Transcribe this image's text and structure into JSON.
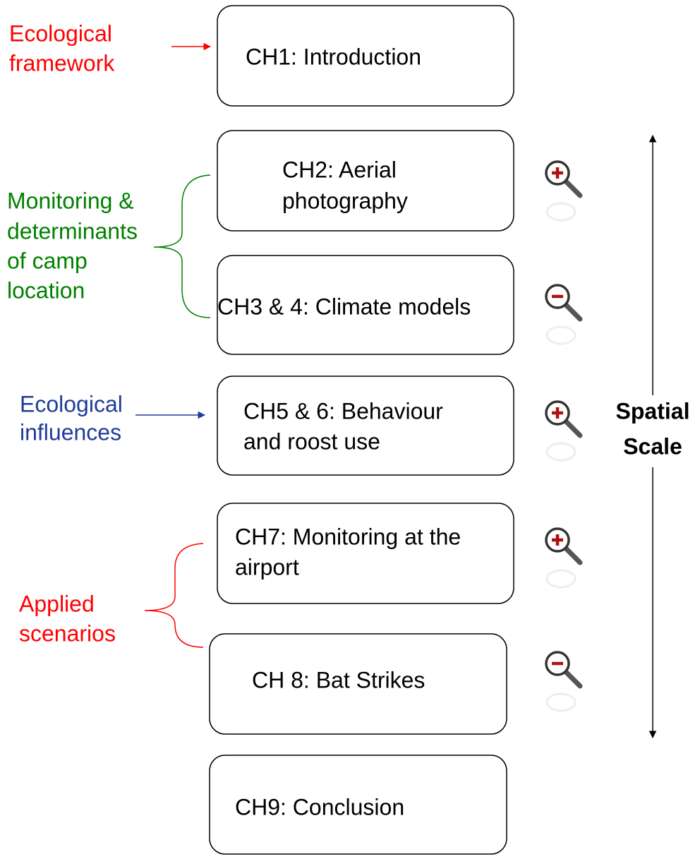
{
  "boxes": [
    {
      "lines": [
        "CH1: Introduction"
      ]
    },
    {
      "lines": [
        "CH2: Aerial",
        "photography"
      ]
    },
    {
      "lines": [
        "CH3 & 4: Climate models"
      ]
    },
    {
      "lines": [
        "CH5 & 6: Behaviour",
        "and roost use"
      ]
    },
    {
      "lines": [
        "CH7: Monitoring at the",
        "airport"
      ]
    },
    {
      "lines": [
        "CH 8: Bat Strikes"
      ]
    },
    {
      "lines": [
        "CH9: Conclusion"
      ]
    }
  ],
  "annotations": [
    {
      "lines": [
        "Ecological",
        "framework"
      ],
      "color": "#ff0000"
    },
    {
      "lines": [
        "Monitoring &",
        "determinants",
        "of camp",
        "location"
      ],
      "color": "#008000"
    },
    {
      "lines": [
        "Ecological",
        "influences"
      ],
      "color": "#1f3c99"
    },
    {
      "lines": [
        "Applied",
        "scenarios"
      ],
      "color": "#ff0000"
    }
  ],
  "axis_label": {
    "lines": [
      "Spatial",
      "Scale"
    ]
  }
}
